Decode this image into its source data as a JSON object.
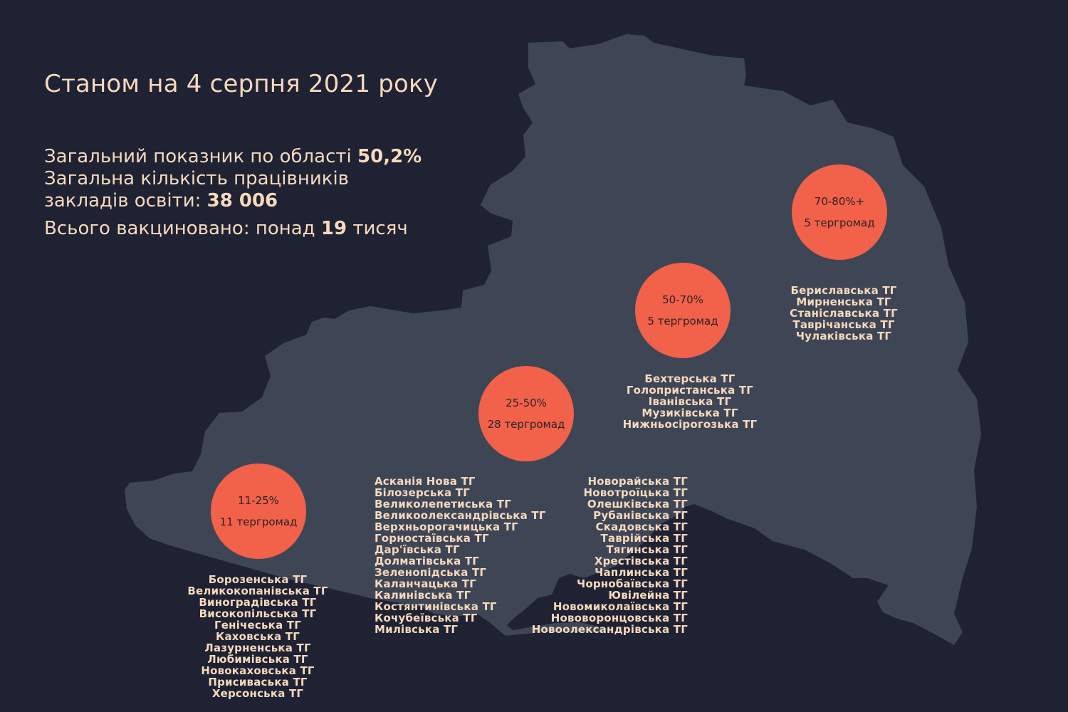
{
  "title": "Станом на 4 серпня 2021 року",
  "stats": {
    "line1_text": "Загальний показник по області ",
    "line1_value": "50,2%",
    "line2_text": "Загальна кількість працівників",
    "line3_text": "закладів освіти: ",
    "line3_value": "38 006",
    "line4_text": "Всього вакциновано: понад ",
    "line4_value": "19",
    "line4_suffix": " тисяч"
  },
  "groups": [
    {
      "range": "11-25%",
      "count": "11 тергромад",
      "communities": [
        "Борозенська ТГ",
        "Великокопанівська ТГ",
        "Виноградівська ТГ",
        "Високопільська ТГ",
        "Генічеська ТГ",
        "Каховська ТГ",
        "Лазурненська ТГ",
        "Любимівська ТГ",
        "Новокаховська ТГ",
        "Присиваська ТГ",
        "Херсонська ТГ"
      ]
    },
    {
      "range": "25-50%",
      "count": "28 тергромад",
      "communities_left": [
        "Асканія Нова ТГ",
        "Білозерська ТГ",
        "Великолепетиська ТГ",
        "Великоолександрівська ТГ",
        "Верхньорогачицька ТГ",
        "Горностаївська ТГ",
        "Дар'ївська ТГ",
        "Долматівська ТГ",
        "Зеленопідська ТГ",
        "Каланчацька ТГ",
        "Калинівська ТГ",
        "Костянтинівська ТГ",
        "Кочубеївська ТГ",
        "Милівська ТГ"
      ],
      "communities_right": [
        "Новорайська ТГ",
        "Новотроїцька ТГ",
        "Олешківська ТГ",
        "Рубанівська ТГ",
        "Скадовська ТГ",
        "Таврійська ТГ",
        "Тягинська ТГ",
        "Хрестівська ТГ",
        "Чаплинська ТГ",
        "Чорнобаївська ТГ",
        "Ювілейна ТГ",
        "Новомиколаївська ТГ",
        "Нововоронцовська ТГ",
        "Новоолександрівська  ТГ"
      ]
    },
    {
      "range": "50-70%",
      "count": "5 тергромад",
      "communities": [
        "Бехтерська ТГ",
        "Голопристанська ТГ",
        "Іванівська ТГ",
        "Музиківська ТГ",
        "Нижньосірогозька ТГ"
      ]
    },
    {
      "range": "70-80%+",
      "count": "5 тергромад",
      "communities": [
        "Бериславська ТГ",
        "Мирненська ТГ",
        "Станіславська ТГ",
        "Таврічанська ТГ",
        "Чулаківська ТГ"
      ]
    }
  ],
  "colors": {
    "background": "#1e2232",
    "region": "#3e4656",
    "bubble": "#f26149",
    "text": "#f7d9bd"
  }
}
